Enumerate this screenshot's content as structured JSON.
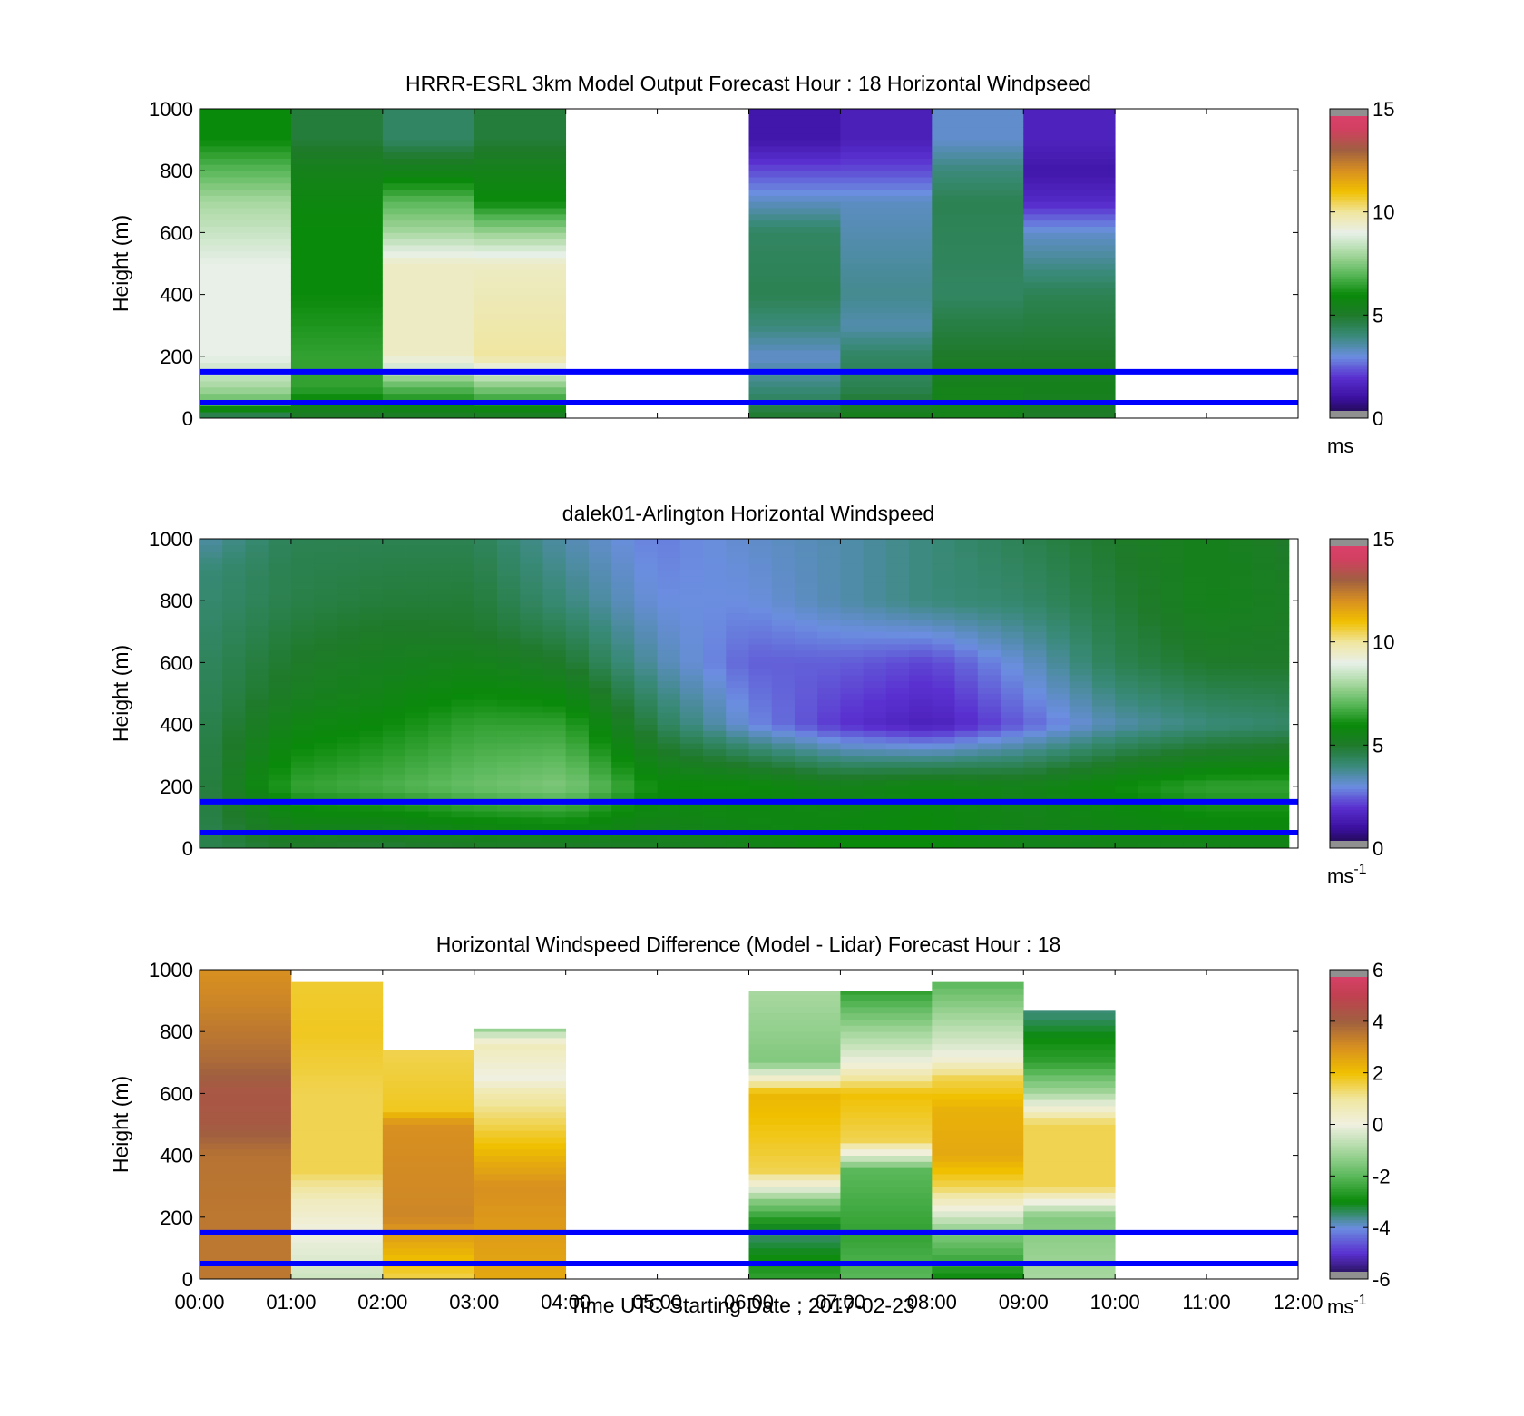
{
  "figure": {
    "xlabel": "Time UTC  Starting Date ; 2017-02-23",
    "x_tick_labels": [
      "00:00",
      "01:00",
      "02:00",
      "03:00",
      "04:00",
      "05:00",
      "06:00",
      "07:00",
      "08:00",
      "09:00",
      "10:00",
      "11:00",
      "12:00"
    ]
  },
  "colors": {
    "reference_lines": "#0000ff",
    "speed_colormap": [
      "#1a0a3a",
      "#3b10a0",
      "#5a30d0",
      "#6b8ee0",
      "#3a8a7a",
      "#1f7a2a",
      "#0a8a0a",
      "#5ab85a",
      "#a8d8a0",
      "#e8f0e8",
      "#f0e6a0",
      "#f0c000",
      "#d89020",
      "#a06040",
      "#d04060",
      "#e04070"
    ],
    "diff_colormap": [
      "#1a0a3a",
      "#5a30d0",
      "#6b8ee0",
      "#0a8a0a",
      "#5ab85a",
      "#a8d8a0",
      "#f0f0e0",
      "#f0e6a0",
      "#f0c000",
      "#d89020",
      "#a06040",
      "#c04050",
      "#e04070"
    ]
  },
  "chart_data": [
    {
      "type": "heatmap",
      "title": "HRRR-ESRL 3km Model Output   Forecast Hour : 18 Horizontal Windpseed",
      "ylabel": "Height (m)",
      "ylim": [
        0,
        1000
      ],
      "y_ticks": [
        "0",
        "200",
        "400",
        "600",
        "800",
        "1000"
      ],
      "colorbar": {
        "range": [
          0,
          15
        ],
        "ticks": [
          "0",
          "5",
          "10",
          "15"
        ],
        "unit": "ms",
        "unit_sup": ""
      },
      "reference_lines_m": [
        50,
        150
      ],
      "columns": [
        {
          "hour": 0,
          "profile": [
            [
              0,
              4
            ],
            [
              50,
              7
            ],
            [
              100,
              8
            ],
            [
              150,
              8.5
            ],
            [
              200,
              9
            ],
            [
              300,
              9
            ],
            [
              500,
              9
            ],
            [
              700,
              8
            ],
            [
              800,
              7
            ],
            [
              900,
              6
            ]
          ]
        },
        {
          "hour": 1,
          "profile": [
            [
              0,
              5
            ],
            [
              100,
              6.5
            ],
            [
              200,
              6.5
            ],
            [
              400,
              6
            ],
            [
              600,
              6
            ],
            [
              700,
              5.8
            ],
            [
              800,
              5.5
            ],
            [
              900,
              4.8
            ]
          ]
        },
        {
          "hour": 2,
          "profile": [
            [
              0,
              5
            ],
            [
              100,
              7
            ],
            [
              200,
              9.5
            ],
            [
              500,
              9.5
            ],
            [
              600,
              8
            ],
            [
              700,
              7
            ],
            [
              800,
              5.5
            ],
            [
              900,
              4.3
            ]
          ]
        },
        {
          "hour": 3,
          "profile": [
            [
              0,
              5
            ],
            [
              100,
              7.5
            ],
            [
              200,
              10
            ],
            [
              500,
              9.5
            ],
            [
              600,
              7.8
            ],
            [
              700,
              6
            ],
            [
              800,
              5.5
            ],
            [
              900,
              4.8
            ]
          ]
        },
        {
          "hour": 6,
          "profile": [
            [
              0,
              5
            ],
            [
              100,
              4
            ],
            [
              200,
              3.2
            ],
            [
              300,
              4
            ],
            [
              400,
              4.5
            ],
            [
              600,
              4.3
            ],
            [
              700,
              3.3
            ],
            [
              800,
              2.3
            ],
            [
              900,
              1.2
            ]
          ]
        },
        {
          "hour": 7,
          "profile": [
            [
              0,
              5.5
            ],
            [
              100,
              4.5
            ],
            [
              200,
              4.3
            ],
            [
              300,
              3.5
            ],
            [
              400,
              3.8
            ],
            [
              700,
              3.3
            ],
            [
              800,
              2.3
            ],
            [
              900,
              1.5
            ]
          ]
        },
        {
          "hour": 8,
          "profile": [
            [
              0,
              5.5
            ],
            [
              100,
              5.5
            ],
            [
              200,
              5
            ],
            [
              300,
              4.7
            ],
            [
              400,
              4.3
            ],
            [
              700,
              4.5
            ],
            [
              800,
              4
            ],
            [
              900,
              3.2
            ]
          ]
        },
        {
          "hour": 9,
          "profile": [
            [
              0,
              5
            ],
            [
              100,
              5.5
            ],
            [
              200,
              5
            ],
            [
              400,
              4.5
            ],
            [
              500,
              3.8
            ],
            [
              600,
              3.2
            ],
            [
              700,
              1.8
            ],
            [
              800,
              1.2
            ],
            [
              900,
              1.6
            ]
          ]
        }
      ]
    },
    {
      "type": "heatmap",
      "title": "dalek01-Arlington  Horizontal Windspeed",
      "ylabel": "Height (m)",
      "ylim": [
        0,
        1000
      ],
      "y_ticks": [
        "0",
        "200",
        "400",
        "600",
        "800",
        "1000"
      ],
      "colorbar": {
        "range": [
          0,
          15
        ],
        "ticks": [
          "0",
          "5",
          "10",
          "15"
        ],
        "unit": "ms",
        "unit_sup": "-1"
      },
      "reference_lines_m": [
        50,
        150
      ],
      "time_range_h": [
        0,
        11.9
      ],
      "profile_points": [
        {
          "t": 0.0,
          "p": [
            [
              0,
              4.5
            ],
            [
              100,
              4.5
            ],
            [
              300,
              4.5
            ],
            [
              600,
              4.3
            ],
            [
              900,
              4.0
            ],
            [
              1000,
              3.5
            ]
          ]
        },
        {
          "t": 1.0,
          "p": [
            [
              0,
              5
            ],
            [
              200,
              6.5
            ],
            [
              500,
              5.2
            ],
            [
              800,
              4.6
            ],
            [
              1000,
              4.5
            ]
          ]
        },
        {
          "t": 2.0,
          "p": [
            [
              0,
              4.8
            ],
            [
              200,
              6.8
            ],
            [
              500,
              5.6
            ],
            [
              800,
              4.8
            ],
            [
              1000,
              4.5
            ]
          ]
        },
        {
          "t": 3.0,
          "p": [
            [
              0,
              5
            ],
            [
              200,
              7.2
            ],
            [
              400,
              6.5
            ],
            [
              700,
              5
            ],
            [
              1000,
              4.5
            ]
          ]
        },
        {
          "t": 4.0,
          "p": [
            [
              0,
              5
            ],
            [
              200,
              7.5
            ],
            [
              400,
              6.5
            ],
            [
              600,
              5
            ],
            [
              800,
              4
            ],
            [
              1000,
              3.5
            ]
          ]
        },
        {
          "t": 5.0,
          "p": [
            [
              0,
              5.2
            ],
            [
              200,
              6
            ],
            [
              400,
              4.5
            ],
            [
              600,
              3.5
            ],
            [
              800,
              3
            ],
            [
              1000,
              2.8
            ]
          ]
        },
        {
          "t": 6.0,
          "p": [
            [
              0,
              5.5
            ],
            [
              200,
              6
            ],
            [
              400,
              3
            ],
            [
              600,
              2.5
            ],
            [
              800,
              3
            ],
            [
              1000,
              3.2
            ]
          ]
        },
        {
          "t": 7.0,
          "p": [
            [
              0,
              6
            ],
            [
              200,
              5.5
            ],
            [
              400,
              2
            ],
            [
              600,
              2.5
            ],
            [
              800,
              3.5
            ],
            [
              1000,
              3.5
            ]
          ]
        },
        {
          "t": 8.0,
          "p": [
            [
              0,
              6
            ],
            [
              200,
              5.8
            ],
            [
              400,
              1.5
            ],
            [
              600,
              2.2
            ],
            [
              800,
              4
            ],
            [
              1000,
              4
            ]
          ]
        },
        {
          "t": 9.0,
          "p": [
            [
              0,
              5.5
            ],
            [
              200,
              5.5
            ],
            [
              400,
              2.5
            ],
            [
              600,
              3.2
            ],
            [
              800,
              4.2
            ],
            [
              1000,
              4.5
            ]
          ]
        },
        {
          "t": 10.0,
          "p": [
            [
              0,
              5.5
            ],
            [
              200,
              6
            ],
            [
              400,
              3.5
            ],
            [
              600,
              4.5
            ],
            [
              800,
              4.8
            ],
            [
              1000,
              5
            ]
          ]
        },
        {
          "t": 11.0,
          "p": [
            [
              0,
              5.5
            ],
            [
              200,
              6.5
            ],
            [
              400,
              4
            ],
            [
              600,
              5
            ],
            [
              800,
              5.5
            ],
            [
              1000,
              5.5
            ]
          ]
        },
        {
          "t": 11.9,
          "p": [
            [
              0,
              5.5
            ],
            [
              200,
              6.5
            ],
            [
              400,
              4.2
            ],
            [
              600,
              5
            ],
            [
              800,
              5.2
            ],
            [
              1000,
              5
            ]
          ]
        }
      ]
    },
    {
      "type": "heatmap",
      "title": "Horizontal Windspeed Difference (Model - Lidar) Forecast Hour : 18",
      "ylabel": "Height (m)",
      "ylim": [
        0,
        1000
      ],
      "y_ticks": [
        "0",
        "200",
        "400",
        "600",
        "800",
        "1000"
      ],
      "colorbar": {
        "range": [
          -6,
          6
        ],
        "ticks": [
          "-6",
          "-4",
          "-2",
          "0",
          "2",
          "4",
          "6"
        ],
        "unit": "ms",
        "unit_sup": "-1"
      },
      "reference_lines_m": [
        50,
        150
      ],
      "columns": [
        {
          "hour": 0,
          "top": 1000,
          "profile": [
            [
              0,
              3.5
            ],
            [
              200,
              3.5
            ],
            [
              400,
              3.6
            ],
            [
              500,
              4.2
            ],
            [
              600,
              4.3
            ],
            [
              700,
              3.8
            ],
            [
              900,
              3.2
            ],
            [
              1000,
              3
            ]
          ]
        },
        {
          "hour": 1,
          "top": 960,
          "profile": [
            [
              0,
              -0.5
            ],
            [
              150,
              0
            ],
            [
              250,
              0.5
            ],
            [
              350,
              1.5
            ],
            [
              600,
              1.5
            ],
            [
              800,
              1.8
            ],
            [
              960,
              1.7
            ]
          ]
        },
        {
          "hour": 2,
          "top": 740,
          "profile": [
            [
              0,
              1.5
            ],
            [
              200,
              3.2
            ],
            [
              500,
              3
            ],
            [
              550,
              1.8
            ],
            [
              740,
              1.5
            ]
          ]
        },
        {
          "hour": 3,
          "top": 810,
          "profile": [
            [
              0,
              2.5
            ],
            [
              300,
              3
            ],
            [
              500,
              1.5
            ],
            [
              600,
              0.8
            ],
            [
              650,
              0
            ],
            [
              760,
              0.6
            ],
            [
              810,
              -1.2
            ]
          ]
        },
        {
          "hour": 6,
          "top": 930,
          "profile": [
            [
              0,
              -2.5
            ],
            [
              150,
              -3.5
            ],
            [
              250,
              -1.5
            ],
            [
              350,
              1.5
            ],
            [
              450,
              1.8
            ],
            [
              600,
              2.2
            ],
            [
              700,
              -1.5
            ],
            [
              930,
              -1
            ]
          ]
        },
        {
          "hour": 7,
          "top": 930,
          "profile": [
            [
              0,
              -2
            ],
            [
              150,
              -2.5
            ],
            [
              350,
              -2
            ],
            [
              450,
              1.5
            ],
            [
              600,
              2
            ],
            [
              700,
              0
            ],
            [
              930,
              -2.5
            ]
          ]
        },
        {
          "hour": 8,
          "top": 960,
          "profile": [
            [
              0,
              -3
            ],
            [
              150,
              -1.5
            ],
            [
              300,
              1.5
            ],
            [
              400,
              2.5
            ],
            [
              550,
              2.3
            ],
            [
              650,
              1.5
            ],
            [
              720,
              0
            ],
            [
              960,
              -2
            ]
          ]
        },
        {
          "hour": 9,
          "top": 870,
          "profile": [
            [
              0,
              -1
            ],
            [
              200,
              -1.5
            ],
            [
              300,
              1.5
            ],
            [
              500,
              1.5
            ],
            [
              600,
              -1
            ],
            [
              700,
              -2.5
            ],
            [
              860,
              -3.5
            ]
          ]
        }
      ]
    }
  ]
}
